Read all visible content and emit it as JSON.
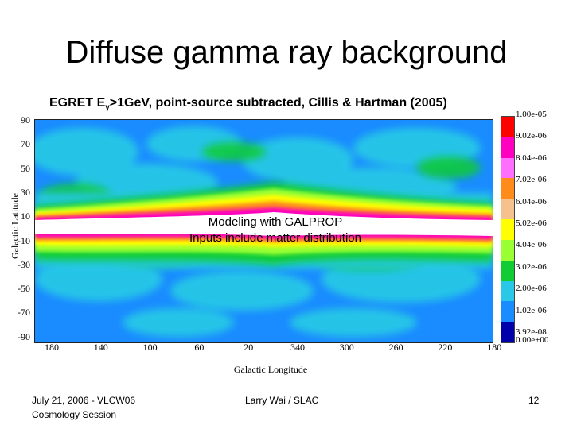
{
  "slide": {
    "title": "Diffuse gamma ray background",
    "subtitle_pre": "EGRET E",
    "subtitle_sub": "γ",
    "subtitle_post": ">1GeV, point-source subtracted, Cillis & Hartman (2005)",
    "overlay_line1": "Modeling with GALPROP",
    "overlay_line2": "Inputs include matter distribution"
  },
  "map": {
    "ylabel": "Galactic Latitude",
    "xlabel": "Galactic Longitude",
    "yticks": [
      "90",
      "70",
      "50",
      "30",
      "10",
      "-10",
      "-30",
      "-50",
      "-70",
      "-90"
    ],
    "xticks": [
      "180",
      "140",
      "100",
      "60",
      "20",
      "340",
      "300",
      "260",
      "220",
      "180"
    ]
  },
  "colorbar": {
    "labels": [
      "1.00e-05",
      "9.02e-06",
      "8.04e-06",
      "7.02e-06",
      "6.04e-06",
      "5.02e-06",
      "4.04e-06",
      "3.02e-06",
      "2.00e-06",
      "1.02e-06",
      "3.92e-08",
      "0.00e+00"
    ],
    "colors": [
      "#ff0000",
      "#ff00c0",
      "#ff6fff",
      "#ff8c1a",
      "#f5c18c",
      "#ffff00",
      "#9aff33",
      "#11cc33",
      "#28c8e6",
      "#1a8cff",
      "#0000aa",
      "#000066"
    ]
  },
  "footer": {
    "date_line1": "July 21, 2006 - VLCW06",
    "date_line2": "Cosmology Session",
    "author": "Larry Wai / SLAC",
    "page": "12"
  }
}
